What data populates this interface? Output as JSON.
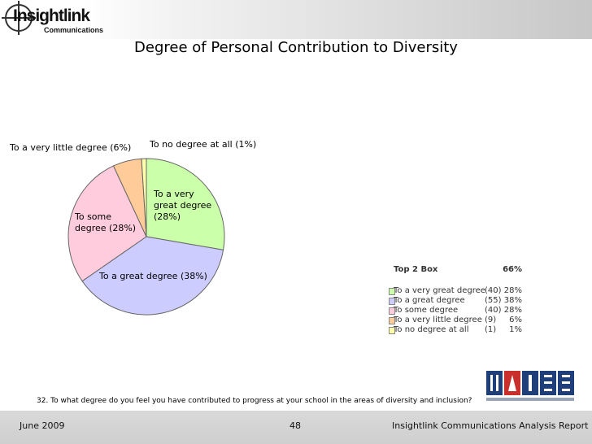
{
  "header": {
    "logo_brand": "Insightlink",
    "logo_sub": "Communications"
  },
  "title": "Degree of Personal Contribution to Diversity",
  "chart_data": {
    "type": "pie",
    "title": "Degree of Personal Contribution to Diversity",
    "slices": [
      {
        "label_lines": [
          "To a very",
          "great degree",
          "(28%)"
        ],
        "value": 28,
        "count": 40,
        "color": "#ccffaa",
        "legend_name": "To a very great degree",
        "legend_count": "(40)",
        "legend_pct": "28%"
      },
      {
        "label_lines": [
          "To a great degree (38%)"
        ],
        "value": 38,
        "count": 55,
        "color": "#ccccff",
        "legend_name": "To a great degree",
        "legend_count": "(55)",
        "legend_pct": "38%"
      },
      {
        "label_lines": [
          "To some",
          "degree (28%)"
        ],
        "value": 28,
        "count": 40,
        "color": "#ffccdd",
        "legend_name": "To some degree",
        "legend_count": "(40)",
        "legend_pct": "28%"
      },
      {
        "label_lines": [
          "To a very little degree (6%)"
        ],
        "value": 6,
        "count": 9,
        "color": "#ffcc99",
        "legend_name": "To a very little degree",
        "legend_count": "(9)",
        "legend_pct": "6%"
      },
      {
        "label_lines": [
          "To no degree at all (1%)"
        ],
        "value": 1,
        "count": 1,
        "color": "#ffffaa",
        "legend_name": "To no degree at all",
        "legend_count": "(1)",
        "legend_pct": "1%"
      }
    ],
    "legend_placement": "bottom-right",
    "top_box": {
      "label": "Top 2 Box",
      "value": "66%"
    }
  },
  "question": "32. To what degree do you feel you have contributed to progress at your school in the areas of diversity and inclusion?",
  "footer": {
    "date": "June 2009",
    "page": "48",
    "report": "Insightlink Communications Analysis Report"
  }
}
